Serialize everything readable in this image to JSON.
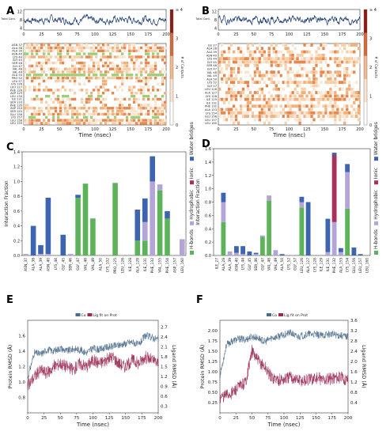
{
  "figure": {
    "panel_letters": [
      "A",
      "B",
      "C",
      "D",
      "E",
      "F"
    ]
  },
  "chart_data": [
    {
      "panel": "A",
      "type": "heatmap",
      "xlabel": "Time (nsec)",
      "xticks": [
        "0",
        "25",
        "50",
        "75",
        "100",
        "125",
        "150",
        "175",
        "200"
      ],
      "xlim": [
        0,
        200
      ],
      "top_trace": {
        "ylabel": "Total Cont.",
        "yticks": [
          "4",
          "8",
          "12"
        ],
        "ylim": [
          3,
          13
        ],
        "mean": 8
      },
      "residues": [
        "ASN 37",
        "ALA 38",
        "ALA 39",
        "ASN 40",
        "LYS 44",
        "GLY 45",
        "SER 46",
        "GLY 47",
        "VAL 48",
        "VAL 49",
        "ALA 50",
        "PRO 52",
        "LEU 57",
        "LYS 126",
        "LEU 127",
        "PHE 128",
        "ASP 129",
        "LEU 130",
        "ILE 131",
        "SER 133",
        "PHE 135",
        "ASP 154",
        "SER 155",
        "GLU 156",
        "LYS 157",
        "LEU 158",
        "LEU 159"
      ],
      "colorbar": {
        "label": "# of Contacts",
        "ticks": [
          "0",
          "1",
          "2",
          "3",
          "≥ 4"
        ]
      }
    },
    {
      "panel": "B",
      "type": "heatmap",
      "xlabel": "Time (nsec)",
      "xticks": [
        "0",
        "25",
        "50",
        "75",
        "100",
        "125",
        "150",
        "175",
        "200"
      ],
      "xlim": [
        0,
        200
      ],
      "top_trace": {
        "ylabel": "Total Cont.",
        "yticks": [
          "4",
          "8",
          "12"
        ],
        "ylim": [
          3,
          13
        ],
        "mean": 8
      },
      "residues": [
        "ILE 27",
        "ALA 28",
        "ALA 39",
        "ASN 40",
        "LYS 44",
        "GLY 45",
        "SER 46",
        "GLY 47",
        "VAL 48",
        "VAL 49",
        "ALA 50",
        "LYS 52",
        "GLY 57",
        "LEU 126",
        "ALA 127",
        "LYS 128",
        "ILE 129",
        "ILE 131",
        "PHE 132",
        "ALA 153",
        "LYS 154",
        "GLU 156",
        "LEU 157",
        "LEU 160"
      ],
      "colorbar": {
        "label": "# of Contacts",
        "ticks": [
          "0",
          "1",
          "2",
          "3",
          "≥ 4"
        ]
      }
    },
    {
      "panel": "C",
      "type": "bar",
      "ylabel": "Interaction Fraction",
      "ylim": [
        0,
        1.4
      ],
      "yticks": [
        "0.0",
        "0.2",
        "0.4",
        "0.6",
        "0.8",
        "1.0",
        "1.2",
        "1.4"
      ],
      "categories": [
        "ASN_37",
        "ALA_38",
        "ALA_39",
        "ASN_40",
        "LYS_44",
        "GLY_45",
        "SER_46",
        "GLY_47",
        "VAL_48",
        "VAL_49",
        "ALA_50",
        "LYS_102",
        "PRO_125",
        "LEU_126",
        "ILE_128",
        "ALA_129",
        "ILE_131",
        "PHE_132",
        "VAL_155",
        "PHE_154",
        "ASP_157",
        "LEU_160"
      ],
      "series": [
        {
          "name": "H-bonds",
          "color": "#5db35a",
          "values": [
            0.0,
            0.0,
            0.0,
            0.0,
            0.0,
            0.0,
            0.0,
            0.78,
            0.97,
            0.5,
            0.0,
            0.0,
            0.98,
            0.0,
            0.0,
            0.2,
            0.2,
            0.0,
            0.88,
            0.5,
            0.0,
            0.0
          ]
        },
        {
          "name": "Hydrophobic",
          "color": "#b3a5d6",
          "values": [
            0.02,
            0.0,
            0.02,
            0.02,
            0.0,
            0.0,
            0.02,
            0.0,
            0.0,
            0.0,
            0.0,
            0.0,
            0.0,
            0.0,
            0.0,
            0.0,
            0.25,
            1.0,
            0.08,
            0.0,
            0.0,
            0.22
          ]
        },
        {
          "name": "Ionic",
          "color": "#a8305b",
          "values": [
            0.0,
            0.0,
            0.0,
            0.0,
            0.0,
            0.0,
            0.0,
            0.0,
            0.0,
            0.0,
            0.0,
            0.0,
            0.0,
            0.0,
            0.0,
            0.0,
            0.0,
            0.0,
            0.0,
            0.0,
            0.0,
            0.0
          ]
        },
        {
          "name": "Water bridges",
          "color": "#3c64b0",
          "values": [
            0.0,
            0.4,
            0.12,
            0.76,
            0.0,
            0.28,
            0.0,
            0.04,
            0.0,
            0.0,
            0.0,
            0.0,
            0.0,
            0.0,
            0.0,
            0.42,
            0.32,
            0.34,
            0.0,
            0.1,
            0.0,
            0.0
          ]
        }
      ],
      "legend": "right"
    },
    {
      "panel": "D",
      "type": "bar",
      "ylabel": "Interaction Fraction",
      "ylim": [
        0,
        1.6
      ],
      "yticks": [
        "0.0",
        "0.2",
        "0.4",
        "0.6",
        "0.8",
        "1.0",
        "1.2",
        "1.4",
        "1.6"
      ],
      "categories": [
        "ILE_27",
        "ALA_28",
        "ALA_39",
        "ASN_40",
        "LYS_44",
        "GLY_45",
        "SER_46",
        "GLY_47",
        "VAL_48",
        "VAL_49",
        "ALA_50",
        "LYS_52",
        "GLY_57",
        "LEU_126",
        "ALA_127",
        "LYS_128",
        "ILE_129",
        "ILE_131",
        "PHE_132",
        "ALA_153",
        "LYS_154",
        "GLU_156",
        "LEU_157",
        "LEU_160"
      ],
      "series": [
        {
          "name": "H-bonds",
          "color": "#5db35a",
          "values": [
            0.0,
            0.5,
            0.0,
            0.0,
            0.0,
            0.0,
            0.0,
            0.28,
            0.82,
            0.0,
            0.0,
            0.0,
            0.0,
            0.72,
            0.0,
            0.0,
            0.0,
            0.0,
            0.0,
            0.0,
            0.7,
            0.0,
            0.0,
            0.0
          ]
        },
        {
          "name": "Hydrophobic",
          "color": "#b3a5d6",
          "values": [
            0.0,
            0.3,
            0.06,
            0.04,
            0.02,
            0.0,
            0.02,
            0.02,
            0.08,
            0.08,
            0.0,
            0.0,
            0.0,
            0.08,
            0.0,
            0.0,
            0.0,
            0.05,
            0.5,
            0.05,
            0.55,
            0.0,
            0.0,
            0.0
          ]
        },
        {
          "name": "Ionic",
          "color": "#a8305b",
          "values": [
            0.0,
            0.0,
            0.0,
            0.0,
            0.0,
            0.0,
            0.0,
            0.0,
            0.0,
            0.0,
            0.0,
            0.0,
            0.0,
            0.0,
            0.0,
            0.0,
            0.0,
            0.0,
            1.0,
            0.0,
            0.0,
            0.0,
            0.0,
            0.0
          ]
        },
        {
          "name": "Water bridges",
          "color": "#3c64b0",
          "values": [
            0.0,
            0.14,
            0.0,
            0.1,
            0.12,
            0.06,
            0.02,
            0.0,
            0.0,
            0.0,
            0.02,
            0.0,
            0.0,
            0.08,
            0.8,
            0.0,
            0.0,
            0.5,
            0.04,
            0.06,
            0.12,
            0.12,
            0.02,
            0.0
          ]
        }
      ],
      "legend": "right"
    },
    {
      "panel": "E",
      "type": "line",
      "xlabel": "Time (nsec)",
      "ylabel_left": "Protein RMSD (Å)",
      "ylabel_right": "Ligand RMSD (Å)",
      "xlim": [
        0,
        200
      ],
      "xticks": [
        "0",
        "25",
        "50",
        "75",
        "100",
        "125",
        "150",
        "175",
        "200"
      ],
      "ylim_left": [
        0.6,
        1.8
      ],
      "yticks_left": [
        "0.8",
        "1.0",
        "1.2",
        "1.4",
        "1.6"
      ],
      "ylim_right": [
        0.1,
        2.9
      ],
      "yticks_right": [
        "0.3",
        "0.6",
        "0.9",
        "1.2",
        "1.5",
        "1.8",
        "2.1",
        "2.4",
        "2.7"
      ],
      "legend_items": [
        "Cα",
        "Lig fit on Prot"
      ],
      "series": [
        {
          "name": "Cα",
          "color": "#4a6b8a",
          "axis": "left",
          "x": [
            0,
            10,
            20,
            30,
            40,
            50,
            60,
            70,
            80,
            90,
            100,
            110,
            120,
            130,
            140,
            150,
            160,
            170,
            180,
            190,
            200
          ],
          "values": [
            1.05,
            1.38,
            1.36,
            1.42,
            1.4,
            1.44,
            1.4,
            1.43,
            1.42,
            1.38,
            1.44,
            1.42,
            1.45,
            1.46,
            1.48,
            1.5,
            1.52,
            1.48,
            1.6,
            1.58,
            1.55
          ]
        },
        {
          "name": "Lig fit on Prot",
          "color": "#9a2a55",
          "axis": "right",
          "x": [
            0,
            10,
            20,
            30,
            40,
            50,
            60,
            70,
            80,
            90,
            100,
            110,
            120,
            130,
            140,
            150,
            160,
            170,
            180,
            190,
            200
          ],
          "values": [
            0.9,
            1.2,
            1.4,
            1.3,
            1.5,
            1.6,
            1.5,
            1.4,
            1.6,
            1.5,
            1.7,
            1.6,
            1.7,
            1.8,
            1.6,
            1.5,
            1.7,
            1.6,
            1.8,
            1.7,
            1.6
          ]
        }
      ]
    },
    {
      "panel": "F",
      "type": "line",
      "xlabel": "Time (nsec)",
      "ylabel_left": "Protein RMSD (Å)",
      "ylabel_right": "Ligand RMSD (Å)",
      "xlim": [
        0,
        200
      ],
      "xticks": [
        "0",
        "25",
        "50",
        "75",
        "100",
        "125",
        "150",
        "175",
        "200"
      ],
      "ylim_left": [
        0.0,
        2.25
      ],
      "yticks_left": [
        "0.25",
        "0.50",
        "0.75",
        "1.00",
        "1.25",
        "1.50",
        "1.75",
        "2.00"
      ],
      "ylim_right": [
        0.0,
        3.6
      ],
      "yticks_right": [
        "0.4",
        "0.8",
        "1.2",
        "1.6",
        "2.0",
        "2.4",
        "2.8",
        "3.2",
        "3.6"
      ],
      "legend_items": [
        "Cα",
        "Lig fit on Prot"
      ],
      "series": [
        {
          "name": "Cα",
          "color": "#4a6b8a",
          "axis": "left",
          "x": [
            0,
            10,
            20,
            30,
            40,
            50,
            60,
            70,
            80,
            90,
            100,
            110,
            120,
            130,
            140,
            150,
            160,
            170,
            180,
            190,
            200
          ],
          "values": [
            0.9,
            1.65,
            1.75,
            1.8,
            1.78,
            1.85,
            1.82,
            1.72,
            1.82,
            1.85,
            1.9,
            1.95,
            1.85,
            1.88,
            1.92,
            1.9,
            1.88,
            1.92,
            1.9,
            1.88,
            1.85
          ]
        },
        {
          "name": "Lig fit on Prot",
          "color": "#9a2a55",
          "axis": "right",
          "x": [
            0,
            10,
            20,
            30,
            40,
            50,
            60,
            70,
            80,
            90,
            100,
            110,
            120,
            130,
            140,
            150,
            160,
            170,
            180,
            190,
            200
          ],
          "values": [
            0.6,
            0.7,
            0.8,
            1.0,
            1.2,
            2.4,
            2.0,
            1.8,
            1.4,
            1.3,
            1.3,
            1.4,
            1.3,
            1.25,
            1.3,
            1.35,
            1.3,
            1.3,
            1.4,
            1.35,
            1.3
          ]
        }
      ]
    }
  ]
}
